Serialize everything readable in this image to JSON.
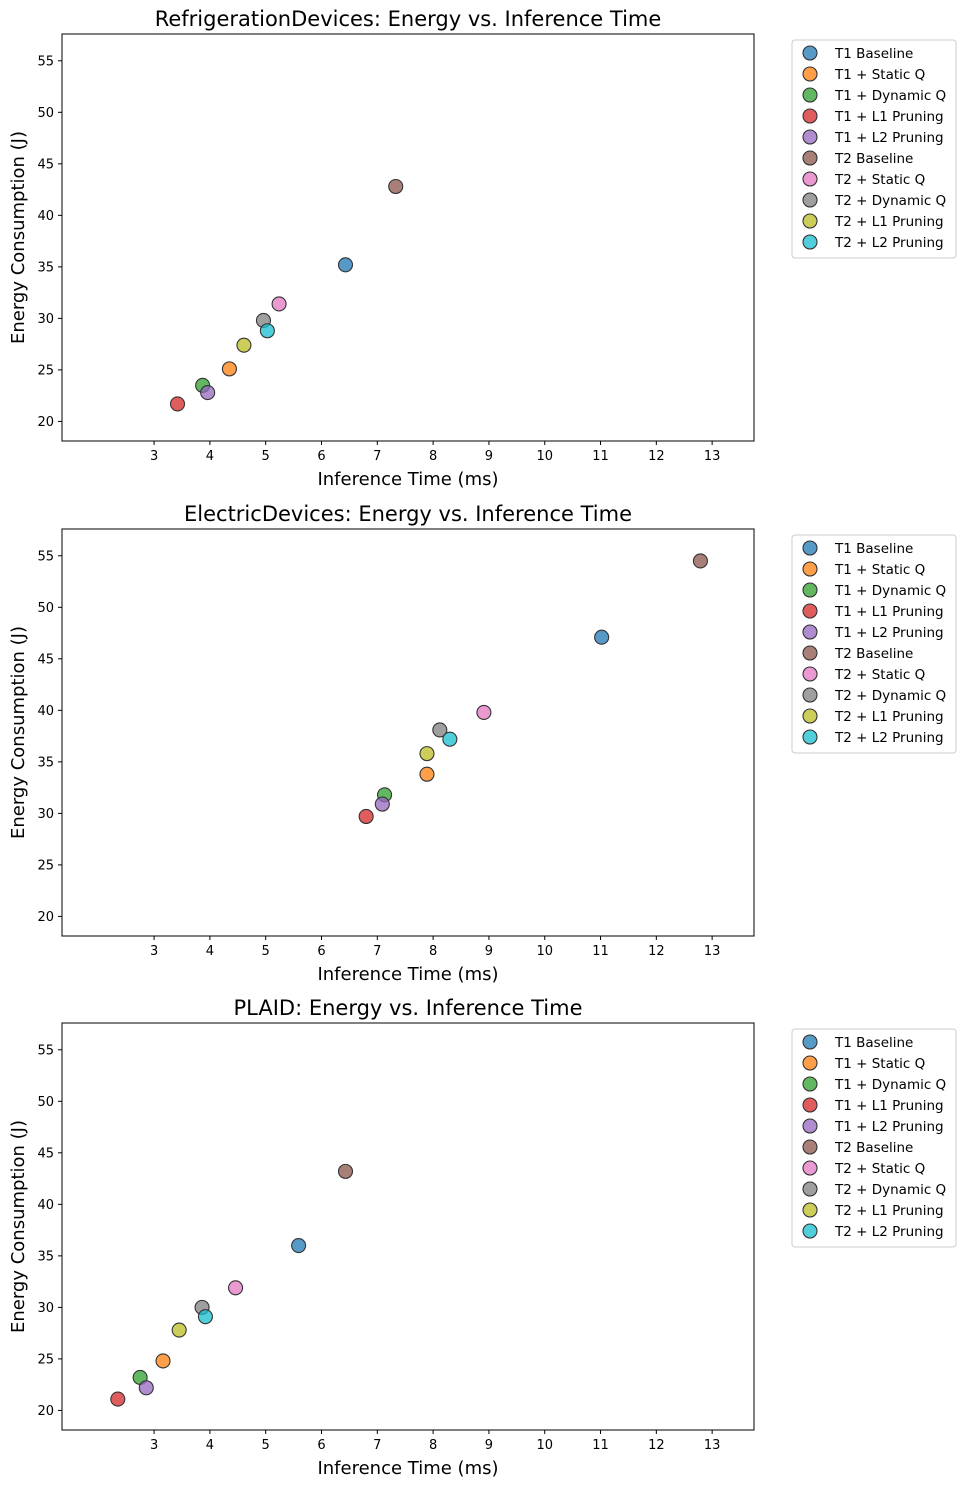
{
  "chart_data": [
    {
      "type": "scatter",
      "title": "RefrigerationDevices: Energy vs. Inference Time",
      "xlabel": "Inference Time (ms)",
      "ylabel": "Energy Consumption (J)",
      "xlim": [
        1.35,
        13.75
      ],
      "ylim": [
        18.1,
        57.6
      ],
      "xticks": [
        3,
        4,
        5,
        6,
        7,
        8,
        9,
        10,
        11,
        12,
        13
      ],
      "yticks": [
        20,
        25,
        30,
        35,
        40,
        45,
        50,
        55
      ],
      "legend_position": "outside right, top",
      "series": [
        {
          "name": "T1 Baseline",
          "color": "#1f77b4",
          "x": 6.43,
          "y": 35.2
        },
        {
          "name": "T1 + Static Q",
          "color": "#ff7f0e",
          "x": 4.35,
          "y": 25.1
        },
        {
          "name": "T1 + Dynamic Q",
          "color": "#2ca02c",
          "x": 3.87,
          "y": 23.5
        },
        {
          "name": "T1 + L1 Pruning",
          "color": "#d62728",
          "x": 3.42,
          "y": 21.7
        },
        {
          "name": "T1 + L2 Pruning",
          "color": "#9467bd",
          "x": 3.96,
          "y": 22.8
        },
        {
          "name": "T2 Baseline",
          "color": "#8c564b",
          "x": 7.33,
          "y": 42.8
        },
        {
          "name": "T2 + Static Q",
          "color": "#e377c2",
          "x": 5.24,
          "y": 31.4
        },
        {
          "name": "T2 + Dynamic Q",
          "color": "#7f7f7f",
          "x": 4.96,
          "y": 29.8
        },
        {
          "name": "T2 + L1 Pruning",
          "color": "#bcbd22",
          "x": 4.61,
          "y": 27.4
        },
        {
          "name": "T2 + L2 Pruning",
          "color": "#17becf",
          "x": 5.03,
          "y": 28.8
        }
      ]
    },
    {
      "type": "scatter",
      "title": "ElectricDevices: Energy vs. Inference Time",
      "xlabel": "Inference Time (ms)",
      "ylabel": "Energy Consumption (J)",
      "xlim": [
        1.35,
        13.75
      ],
      "ylim": [
        18.1,
        57.6
      ],
      "xticks": [
        3,
        4,
        5,
        6,
        7,
        8,
        9,
        10,
        11,
        12,
        13
      ],
      "yticks": [
        20,
        25,
        30,
        35,
        40,
        45,
        50,
        55
      ],
      "legend_position": "outside right, top",
      "series": [
        {
          "name": "T1 Baseline",
          "color": "#1f77b4",
          "x": 11.02,
          "y": 47.1
        },
        {
          "name": "T1 + Static Q",
          "color": "#ff7f0e",
          "x": 7.89,
          "y": 33.8
        },
        {
          "name": "T1 + Dynamic Q",
          "color": "#2ca02c",
          "x": 7.13,
          "y": 31.8
        },
        {
          "name": "T1 + L1 Pruning",
          "color": "#d62728",
          "x": 6.8,
          "y": 29.7
        },
        {
          "name": "T1 + L2 Pruning",
          "color": "#9467bd",
          "x": 7.09,
          "y": 30.9
        },
        {
          "name": "T2 Baseline",
          "color": "#8c564b",
          "x": 12.79,
          "y": 54.5
        },
        {
          "name": "T2 + Static Q",
          "color": "#e377c2",
          "x": 8.91,
          "y": 39.8
        },
        {
          "name": "T2 + Dynamic Q",
          "color": "#7f7f7f",
          "x": 8.12,
          "y": 38.1
        },
        {
          "name": "T2 + L1 Pruning",
          "color": "#bcbd22",
          "x": 7.89,
          "y": 35.8
        },
        {
          "name": "T2 + L2 Pruning",
          "color": "#17becf",
          "x": 8.3,
          "y": 37.2
        }
      ]
    },
    {
      "type": "scatter",
      "title": "PLAID: Energy vs. Inference Time",
      "xlabel": "Inference Time (ms)",
      "ylabel": "Energy Consumption (J)",
      "xlim": [
        1.35,
        13.75
      ],
      "ylim": [
        18.1,
        57.6
      ],
      "xticks": [
        3,
        4,
        5,
        6,
        7,
        8,
        9,
        10,
        11,
        12,
        13
      ],
      "yticks": [
        20,
        25,
        30,
        35,
        40,
        45,
        50,
        55
      ],
      "legend_position": "outside right, top",
      "series": [
        {
          "name": "T1 Baseline",
          "color": "#1f77b4",
          "x": 5.59,
          "y": 36.0
        },
        {
          "name": "T1 + Static Q",
          "color": "#ff7f0e",
          "x": 3.16,
          "y": 24.8
        },
        {
          "name": "T1 + Dynamic Q",
          "color": "#2ca02c",
          "x": 2.75,
          "y": 23.2
        },
        {
          "name": "T1 + L1 Pruning",
          "color": "#d62728",
          "x": 2.35,
          "y": 21.1
        },
        {
          "name": "T1 + L2 Pruning",
          "color": "#9467bd",
          "x": 2.86,
          "y": 22.2
        },
        {
          "name": "T2 Baseline",
          "color": "#8c564b",
          "x": 6.43,
          "y": 43.2
        },
        {
          "name": "T2 + Static Q",
          "color": "#e377c2",
          "x": 4.46,
          "y": 31.9
        },
        {
          "name": "T2 + Dynamic Q",
          "color": "#7f7f7f",
          "x": 3.86,
          "y": 30.0
        },
        {
          "name": "T2 + L1 Pruning",
          "color": "#bcbd22",
          "x": 3.45,
          "y": 27.8
        },
        {
          "name": "T2 + L2 Pruning",
          "color": "#17becf",
          "x": 3.92,
          "y": 29.1
        }
      ]
    }
  ]
}
